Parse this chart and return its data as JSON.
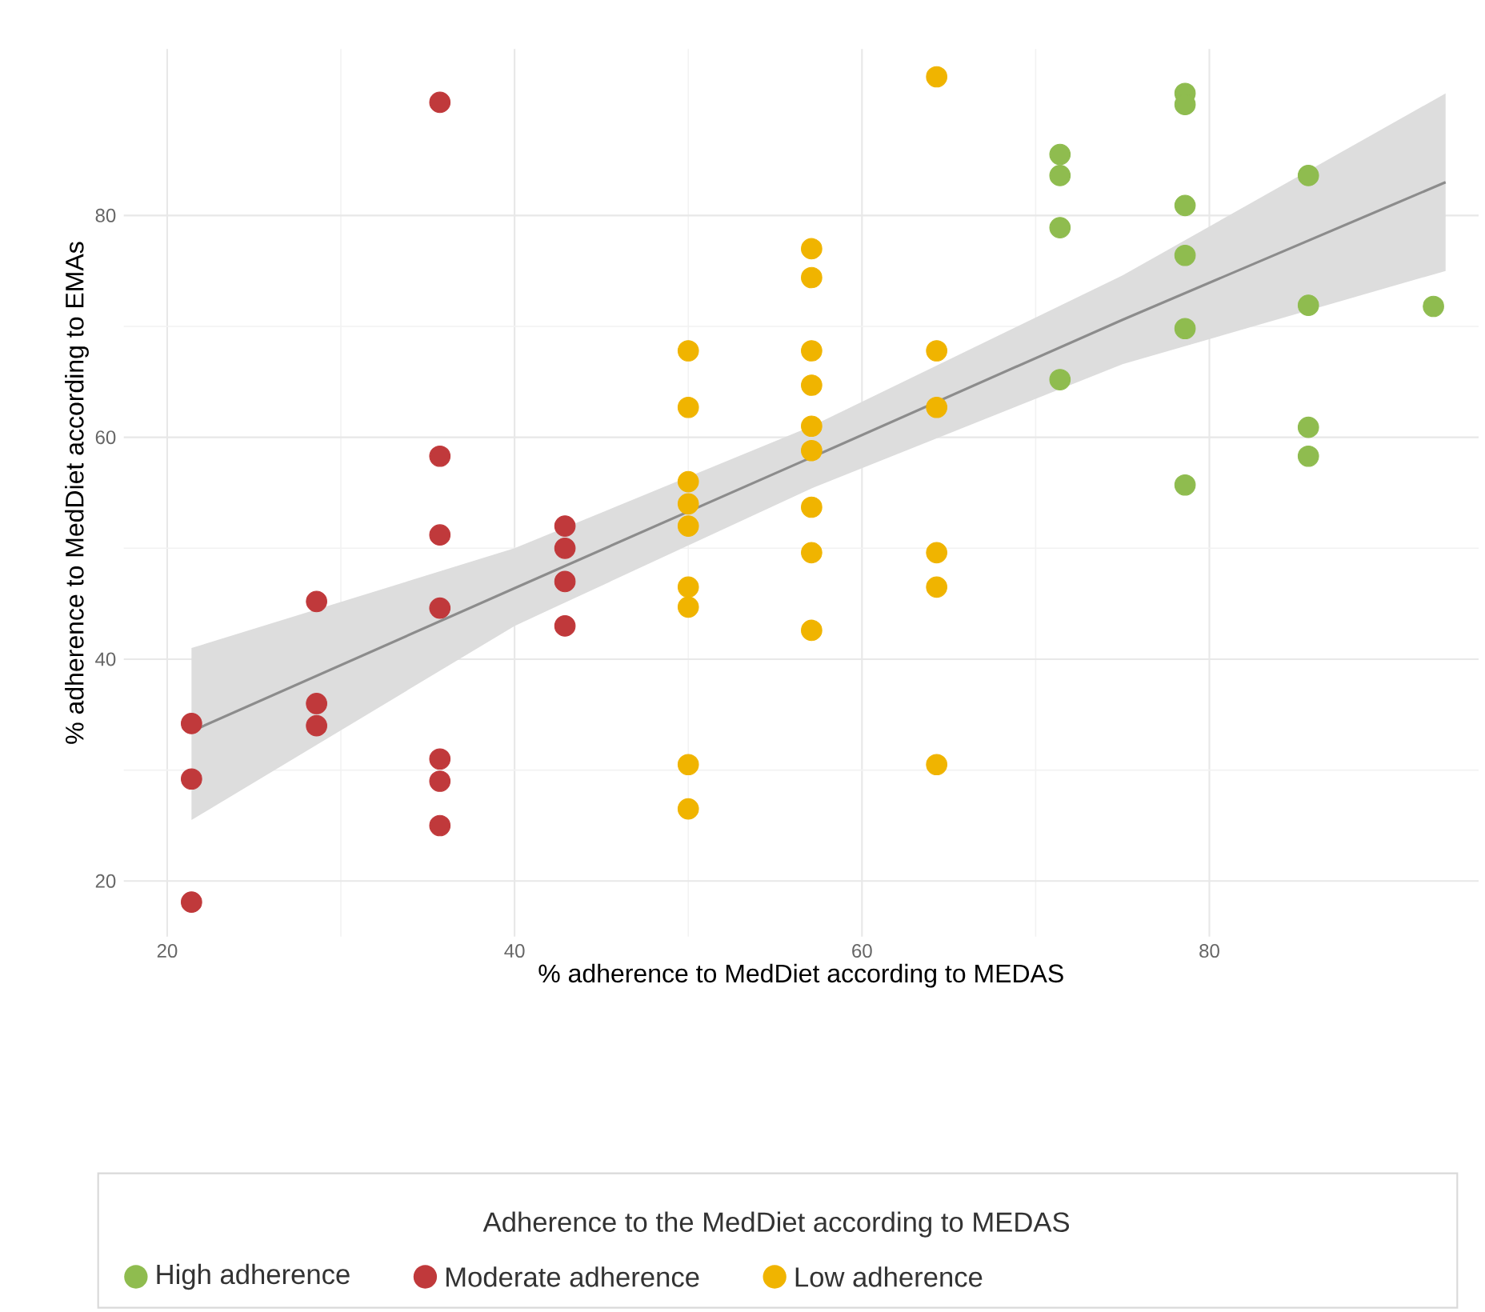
{
  "chart_data": {
    "type": "scatter",
    "xlabel": "% adherence to MedDiet according to MEDAS",
    "ylabel": "% adherence to MedDiet according to EMAs",
    "legend_title": "Adherence to the MedDiet according to MEDAS",
    "legend": "bottom",
    "grid": true,
    "marker": "circle",
    "xlim": [
      17.5,
      95.5
    ],
    "ylim": [
      15,
      95
    ],
    "xticks": [
      20,
      40,
      60,
      80
    ],
    "yticks": [
      20,
      40,
      60,
      80
    ],
    "series": [
      {
        "name": "High adherence",
        "color": "#8fbc4f",
        "x": [
          71.4,
          71.4,
          71.4,
          71.4,
          78.6,
          78.6,
          78.6,
          78.6,
          78.6,
          78.6,
          85.7,
          85.7,
          85.7,
          85.7,
          92.9
        ],
        "values": [
          85.5,
          83.6,
          78.9,
          65.2,
          91,
          90,
          80.9,
          76.4,
          69.8,
          55.7,
          83.6,
          71.9,
          60.9,
          58.3,
          71.8
        ]
      },
      {
        "name": "Moderate adherence",
        "color": "#c0393b",
        "x": [
          21.4,
          21.4,
          21.4,
          28.6,
          28.6,
          28.6,
          35.7,
          35.7,
          35.7,
          35.7,
          35.7,
          35.7,
          35.7,
          42.9,
          42.9,
          42.9,
          42.9
        ],
        "values": [
          34.2,
          29.2,
          18.1,
          45.2,
          36,
          34,
          90.2,
          58.3,
          51.2,
          44.6,
          31,
          29,
          25,
          52,
          50,
          47,
          43
        ]
      },
      {
        "name": "Low adherence",
        "color": "#f0b400",
        "x": [
          50,
          50,
          50,
          50,
          50,
          50,
          50,
          50,
          50,
          57.1,
          57.1,
          57.1,
          57.1,
          57.1,
          57.1,
          57.1,
          57.1,
          57.1,
          64.3,
          64.3,
          64.3,
          64.3,
          64.3,
          64.3
        ],
        "values": [
          67.8,
          62.7,
          56,
          54,
          52,
          46.5,
          44.7,
          30.5,
          26.5,
          77,
          74.4,
          67.8,
          64.7,
          61,
          58.8,
          53.7,
          49.6,
          42.6,
          92.5,
          67.8,
          62.7,
          49.6,
          46.5,
          30.5
        ]
      },
      {
        "type": "line",
        "color": "#8c8c8c",
        "marker": "none",
        "x": [
          21.4,
          40,
          57.1,
          75,
          93.6
        ],
        "values": [
          33.5,
          46.4,
          58.2,
          70.6,
          83
        ],
        "lower": [
          25.5,
          43,
          55.4,
          66.6,
          75
        ],
        "upper": [
          41,
          50,
          61,
          74.6,
          91
        ]
      }
    ]
  }
}
